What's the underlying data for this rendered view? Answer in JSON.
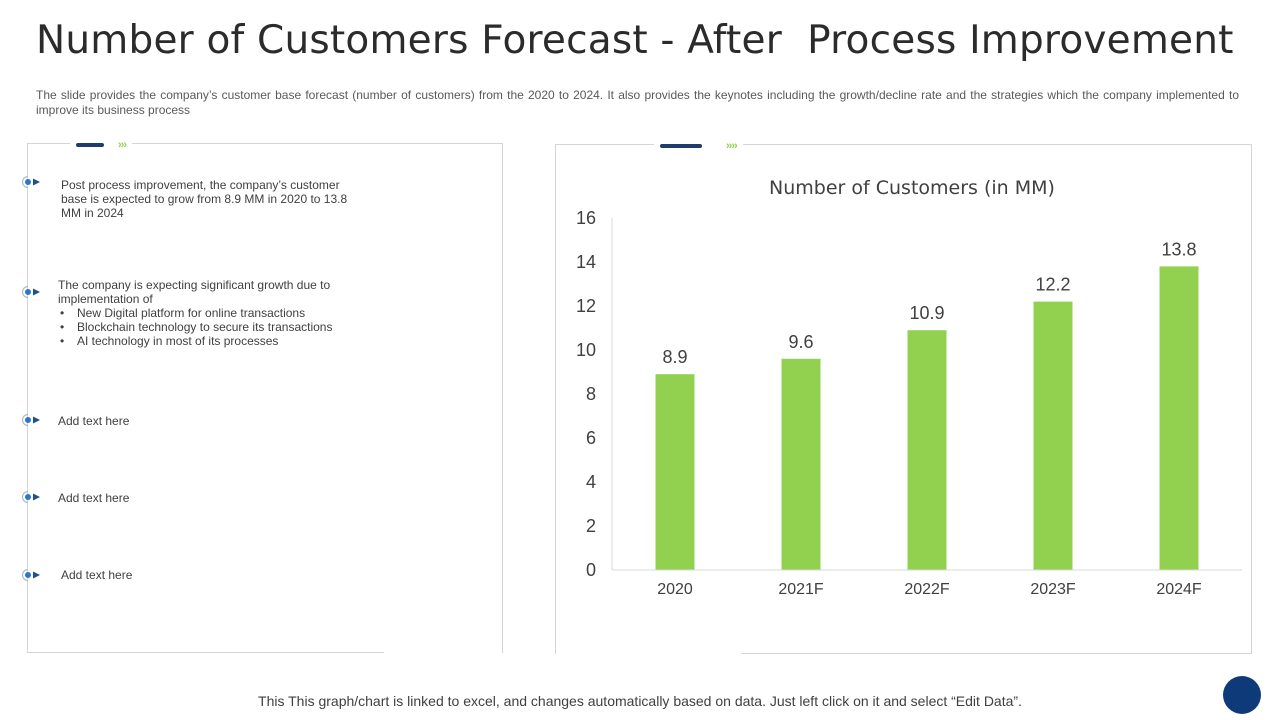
{
  "slide": {
    "title": "Number of Customers Forecast - After  Process Improvement",
    "subtitle": "The slide provides the company’s customer base forecast (number of customers) from the 2020 to 2024. It also provides the keynotes including the growth/decline rate and the strategies which the company implemented to improve its business process",
    "footer": "This This graph/chart is linked to excel, and changes automatically based on data. Just left click on it and select “Edit Data”."
  },
  "notes": {
    "note1": "Post process improvement, the company’s customer base is expected to grow from 8.9 MM  in 2020 to 13.8 MM  in 2024",
    "note2_intro": "The company is expecting significant growth due to implementation of",
    "note2_items": [
      "New Digital platform for online transactions",
      "Blockchain technology to secure its transactions",
      "AI technology in most of its processes"
    ],
    "note3": "Add text here",
    "note4": "Add text here",
    "note5": "Add text here"
  },
  "colors": {
    "bar": "#92d050",
    "accent": "#1f3c6e",
    "chevron": "#92d050"
  },
  "chart_data": {
    "type": "bar",
    "title": "Number of Customers (in MM)",
    "categories": [
      "2020",
      "2021F",
      "2022F",
      "2023F",
      "2024F"
    ],
    "values": [
      8.9,
      9.6,
      10.9,
      12.2,
      13.8
    ],
    "data_labels": [
      "8.9",
      "9.6",
      "10.9",
      "12.2",
      "13.8"
    ],
    "ylim": [
      0,
      16
    ],
    "yticks": [
      0,
      2,
      4,
      6,
      8,
      10,
      12,
      14,
      16
    ],
    "xlabel": "",
    "ylabel": "",
    "grid": false,
    "legend": "none"
  }
}
